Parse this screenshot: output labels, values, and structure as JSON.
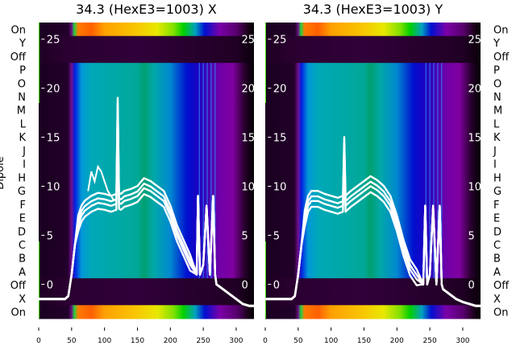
{
  "chart_data": [
    {
      "type": "heatmap",
      "title": "34.3 (HexE3=1003) X",
      "ylabel": "Dipole",
      "row_labels": [
        "On",
        "Y",
        "Off",
        "P",
        "O",
        "N",
        "M",
        "L",
        "K",
        "J",
        "I",
        "H",
        "G",
        "F",
        "E",
        "D",
        "C",
        "B",
        "A",
        "Off",
        "X",
        "On"
      ],
      "row_label_side": "left",
      "x_ticks": [
        0,
        50,
        100,
        150,
        200,
        250,
        300
      ],
      "xlim": [
        0,
        327
      ],
      "overlay_line": {
        "color": "#ffffff",
        "y_ticks": [
          0,
          5,
          10,
          15,
          20,
          25
        ],
        "ylim": [
          -3.5,
          26.7
        ],
        "x": [
          0,
          20,
          40,
          45,
          50,
          55,
          60,
          65,
          70,
          80,
          90,
          100,
          110,
          118,
          120,
          122,
          125,
          130,
          140,
          150,
          160,
          170,
          180,
          190,
          200,
          210,
          220,
          230,
          240,
          242,
          245,
          250,
          255,
          260,
          265,
          268,
          270,
          280,
          290,
          300,
          310,
          320,
          327
        ],
        "y": [
          -1.5,
          -1.5,
          -1.5,
          -1.2,
          1,
          4,
          6,
          7,
          7.5,
          8,
          8.3,
          8.2,
          8,
          8.2,
          18,
          8.3,
          8.2,
          8.5,
          8.7,
          9,
          9.8,
          9.5,
          9,
          8.5,
          7,
          5,
          3.5,
          2,
          1,
          9,
          1,
          2,
          8,
          1,
          9,
          1,
          0,
          -0.5,
          -1,
          -1.5,
          -2,
          -2.2,
          -2.2
        ]
      },
      "overlay_line_extra": {
        "x": [
          75,
          80,
          85,
          90,
          95,
          100,
          105,
          110,
          115
        ],
        "y": [
          9.5,
          11.5,
          10.5,
          12,
          11.5,
          10.5,
          9.5,
          9,
          8.5
        ]
      }
    },
    {
      "type": "heatmap",
      "title": "34.3 (HexE3=1003) Y",
      "row_labels": [
        "On",
        "Y",
        "Off",
        "P",
        "O",
        "N",
        "M",
        "L",
        "K",
        "J",
        "I",
        "H",
        "G",
        "F",
        "E",
        "D",
        "C",
        "B",
        "A",
        "Off",
        "X",
        "On"
      ],
      "row_label_side": "right",
      "x_ticks": [
        0,
        50,
        100,
        150,
        200,
        250,
        300
      ],
      "xlim": [
        0,
        327
      ],
      "overlay_line": {
        "color": "#ffffff",
        "y_ticks": [
          0,
          5,
          10,
          15,
          20,
          25
        ],
        "ylim": [
          -3.5,
          26.7
        ],
        "x": [
          0,
          20,
          40,
          45,
          50,
          55,
          60,
          65,
          70,
          80,
          90,
          100,
          110,
          118,
          120,
          122,
          125,
          130,
          140,
          150,
          160,
          170,
          180,
          190,
          200,
          210,
          220,
          230,
          240,
          243,
          246,
          250,
          255,
          260,
          265,
          268,
          270,
          280,
          290,
          300,
          310,
          320,
          327
        ],
        "y": [
          -1.5,
          -1.5,
          -1.5,
          -1.2,
          1,
          4,
          6.5,
          8,
          8.5,
          8.5,
          8.2,
          8,
          7.8,
          8,
          14,
          8,
          8.2,
          8.5,
          9,
          9.5,
          10,
          9.6,
          9,
          8,
          6,
          3.5,
          1.5,
          0.5,
          0,
          8,
          0,
          1,
          8,
          0,
          8,
          0,
          -0.5,
          -1,
          -1.5,
          -1.8,
          -2,
          -2.2,
          -2.2
        ]
      }
    }
  ],
  "colors": {
    "on_row": [
      [
        0,
        "#1a0020"
      ],
      [
        45,
        "#22002a"
      ],
      [
        50,
        "#6a1080"
      ],
      [
        54,
        "#20d040"
      ],
      [
        60,
        "#ff7a00"
      ],
      [
        80,
        "#ff6000"
      ],
      [
        100,
        "#ffa000"
      ],
      [
        150,
        "#f8c800"
      ],
      [
        180,
        "#e8e800"
      ],
      [
        205,
        "#80e000"
      ],
      [
        220,
        "#00d000"
      ],
      [
        238,
        "#00a0c0"
      ],
      [
        252,
        "#0010d0"
      ],
      [
        275,
        "#7a00a8"
      ],
      [
        300,
        "#5a0070"
      ],
      [
        318,
        "#1a0018"
      ],
      [
        327,
        "#000000"
      ]
    ],
    "off_row": [
      [
        0,
        "#1e0022"
      ],
      [
        40,
        "#2a0030"
      ],
      [
        150,
        "#30003a"
      ],
      [
        300,
        "#200024"
      ],
      [
        327,
        "#0a000a"
      ]
    ],
    "dipole_row": [
      [
        0,
        "#1a0020"
      ],
      [
        44,
        "#22002a"
      ],
      [
        50,
        "#701090"
      ],
      [
        55,
        "#0020e0"
      ],
      [
        65,
        "#0098d8"
      ],
      [
        80,
        "#00a8b8"
      ],
      [
        150,
        "#00a898"
      ],
      [
        160,
        "#00a070"
      ],
      [
        175,
        "#00a8a8"
      ],
      [
        200,
        "#0088d0"
      ],
      [
        225,
        "#0010d0"
      ],
      [
        245,
        "#2000c0"
      ],
      [
        275,
        "#7000a8"
      ],
      [
        295,
        "#8000a0"
      ],
      [
        312,
        "#2a0030"
      ],
      [
        327,
        "#000000"
      ]
    ]
  }
}
